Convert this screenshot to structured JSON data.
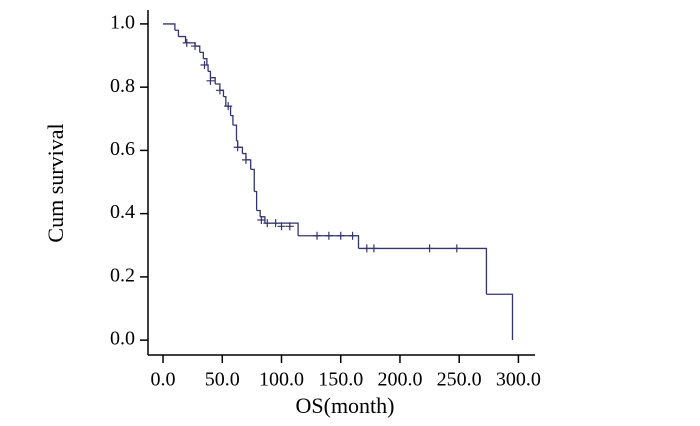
{
  "chart_data": {
    "type": "step",
    "x_label": "OS(month)",
    "y_label": "Cum survival",
    "color": "#34346f",
    "x": [
      0,
      10,
      13,
      19,
      27,
      31,
      34,
      37,
      38,
      40,
      44,
      48,
      51,
      53,
      57,
      59,
      62,
      63,
      67,
      70,
      74,
      77,
      79,
      82,
      86,
      114,
      165,
      273,
      295
    ],
    "values": [
      1.0,
      0.98,
      0.96,
      0.94,
      0.93,
      0.91,
      0.89,
      0.87,
      0.85,
      0.83,
      0.81,
      0.79,
      0.77,
      0.74,
      0.71,
      0.68,
      0.63,
      0.61,
      0.59,
      0.57,
      0.54,
      0.47,
      0.41,
      0.39,
      0.37,
      0.33,
      0.29,
      0.145,
      0.0
    ],
    "censored": {
      "x": [
        20,
        27,
        35,
        40,
        48,
        55,
        63,
        70,
        83,
        88,
        95,
        100,
        107,
        130,
        140,
        150,
        160,
        172,
        178,
        225,
        248
      ],
      "values": [
        0.94,
        0.93,
        0.87,
        0.82,
        0.79,
        0.74,
        0.61,
        0.57,
        0.38,
        0.37,
        0.37,
        0.36,
        0.36,
        0.33,
        0.33,
        0.33,
        0.33,
        0.29,
        0.29,
        0.29,
        0.29
      ]
    },
    "xlim": [
      -12.7,
      314
    ],
    "ylim": [
      -0.047,
      1.044
    ],
    "xticks": [
      {
        "value": 0,
        "label": "0.0"
      },
      {
        "value": 50,
        "label": "50.0"
      },
      {
        "value": 100,
        "label": "100.0"
      },
      {
        "value": 150,
        "label": "150.0"
      },
      {
        "value": 200,
        "label": "200.0"
      },
      {
        "value": 250,
        "label": "250.0"
      },
      {
        "value": 300,
        "label": "300.0"
      }
    ],
    "yticks": [
      {
        "value": 0,
        "label": "0.0"
      },
      {
        "value": 0.2,
        "label": "0.2"
      },
      {
        "value": 0.4,
        "label": "0.4"
      },
      {
        "value": 0.6,
        "label": "0.6"
      },
      {
        "value": 0.8,
        "label": "0.8"
      },
      {
        "value": 1,
        "label": "1.0"
      }
    ]
  }
}
